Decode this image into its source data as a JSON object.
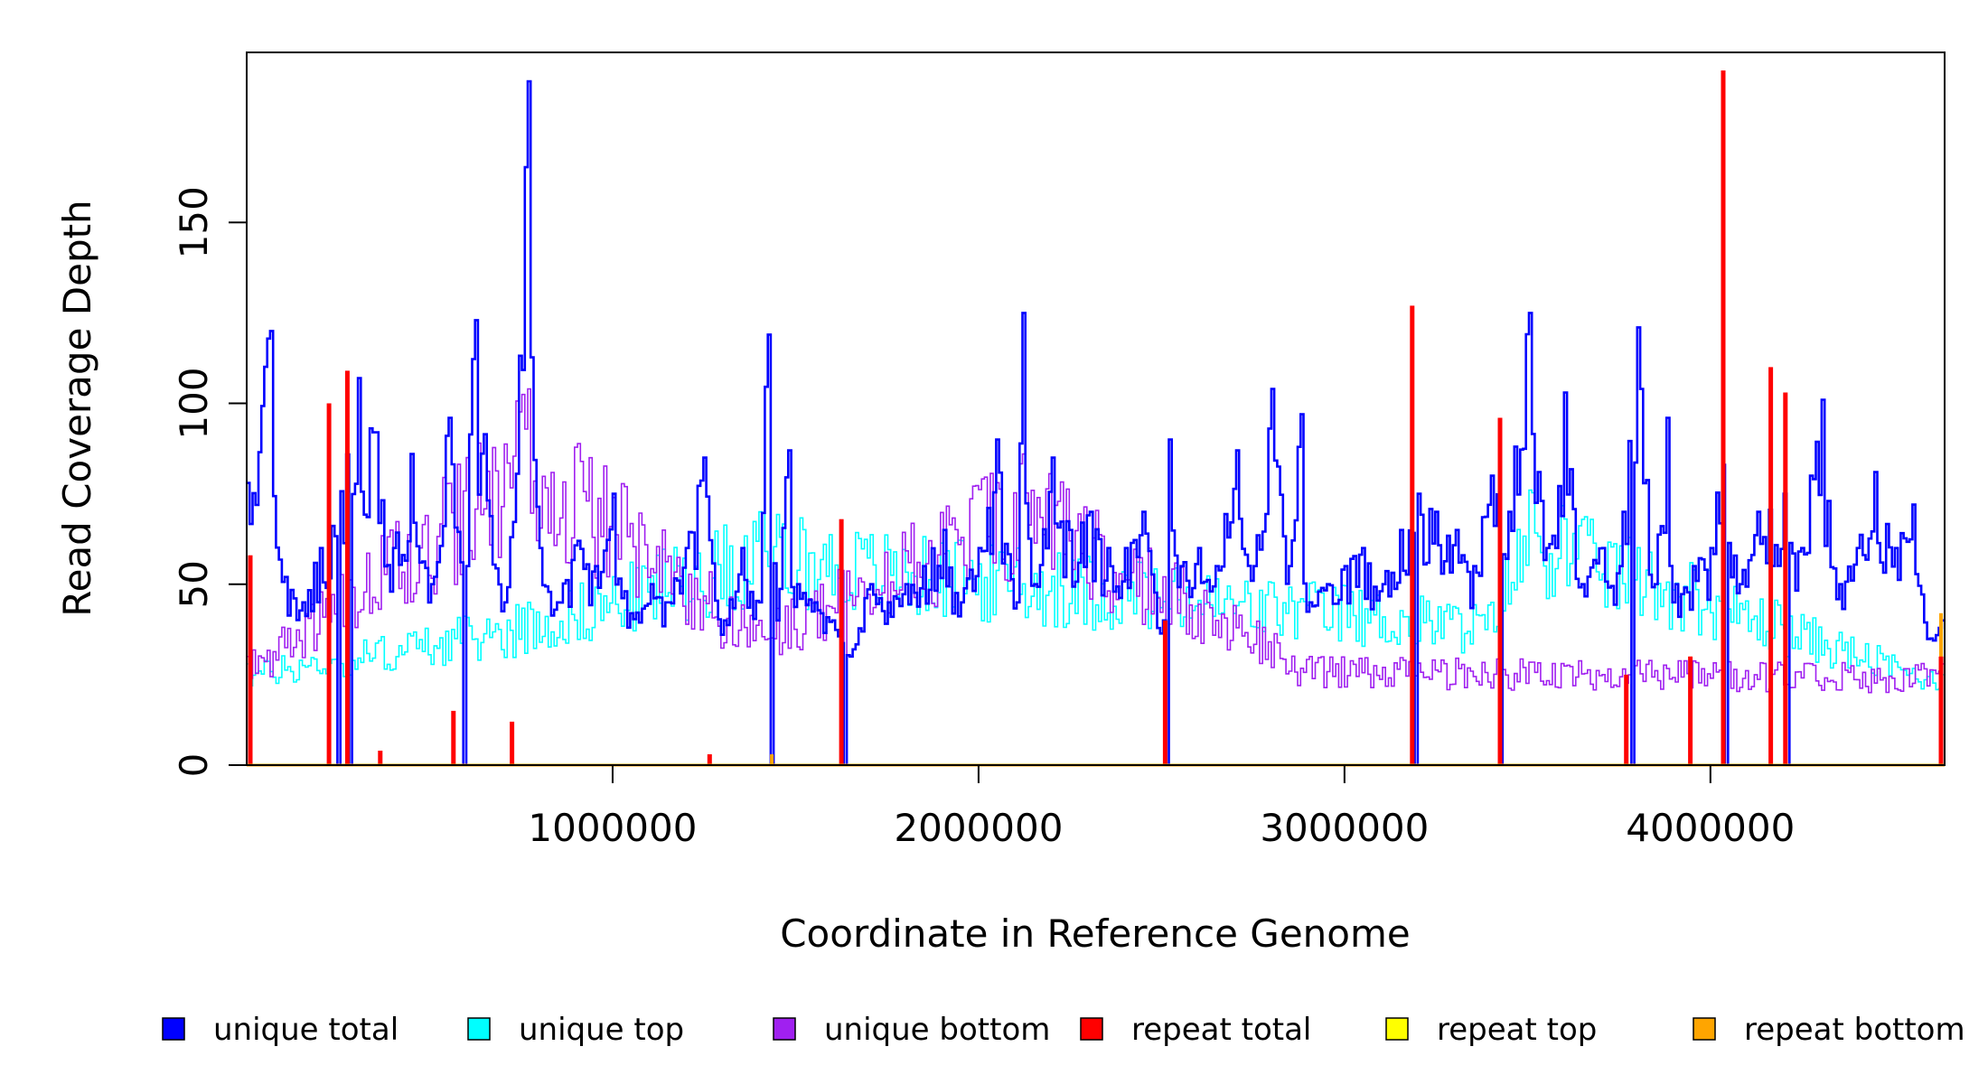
{
  "chart_data": {
    "type": "line",
    "title": "",
    "xlabel": "Coordinate in Reference Genome",
    "ylabel": "Read Coverage Depth",
    "xlim": [
      0,
      4640000
    ],
    "ylim": [
      0,
      197
    ],
    "x_ticks": [
      {
        "value": 1000000,
        "label": "1000000"
      },
      {
        "value": 2000000,
        "label": "2000000"
      },
      {
        "value": 3000000,
        "label": "3000000"
      },
      {
        "value": 4000000,
        "label": "4000000"
      }
    ],
    "y_ticks": [
      {
        "value": 0,
        "label": "0"
      },
      {
        "value": 50,
        "label": "50"
      },
      {
        "value": 100,
        "label": "100"
      },
      {
        "value": 150,
        "label": "150"
      }
    ],
    "grid": false,
    "legend_position": "bottom",
    "bin_size": 8000,
    "series": [
      {
        "name": "unique total",
        "color": "#0000ff",
        "profile": [
          [
            0,
            78
          ],
          [
            60000,
            120
          ],
          [
            100000,
            52
          ],
          [
            150000,
            45
          ],
          [
            200000,
            60
          ],
          [
            250000,
            75
          ],
          [
            300000,
            107
          ],
          [
            350000,
            92
          ],
          [
            400000,
            60
          ],
          [
            450000,
            86
          ],
          [
            500000,
            50
          ],
          [
            550000,
            96
          ],
          [
            600000,
            55
          ],
          [
            620000,
            123
          ],
          [
            700000,
            45
          ],
          [
            720000,
            63
          ],
          [
            770000,
            189
          ],
          [
            800000,
            60
          ],
          [
            850000,
            45
          ],
          [
            900000,
            62
          ],
          [
            950000,
            55
          ],
          [
            1000000,
            75
          ],
          [
            1050000,
            42
          ],
          [
            1100000,
            50
          ],
          [
            1150000,
            45
          ],
          [
            1200000,
            60
          ],
          [
            1250000,
            85
          ],
          [
            1300000,
            40
          ],
          [
            1350000,
            60
          ],
          [
            1400000,
            45
          ],
          [
            1420000,
            119
          ],
          [
            1450000,
            40
          ],
          [
            1480000,
            87
          ],
          [
            1500000,
            50
          ],
          [
            1550000,
            45
          ],
          [
            1600000,
            40
          ],
          [
            1650000,
            30
          ],
          [
            1700000,
            50
          ],
          [
            1750000,
            45
          ],
          [
            1800000,
            50
          ],
          [
            1850000,
            55
          ],
          [
            1900000,
            65
          ],
          [
            1950000,
            45
          ],
          [
            2000000,
            60
          ],
          [
            2050000,
            90
          ],
          [
            2100000,
            45
          ],
          [
            2120000,
            125
          ],
          [
            2150000,
            50
          ],
          [
            2200000,
            85
          ],
          [
            2250000,
            65
          ],
          [
            2300000,
            70
          ],
          [
            2350000,
            60
          ],
          [
            2400000,
            60
          ],
          [
            2450000,
            70
          ],
          [
            2500000,
            40
          ],
          [
            2520000,
            90
          ],
          [
            2550000,
            55
          ],
          [
            2600000,
            60
          ],
          [
            2650000,
            55
          ],
          [
            2700000,
            87
          ],
          [
            2750000,
            55
          ],
          [
            2800000,
            104
          ],
          [
            2850000,
            55
          ],
          [
            2880000,
            97
          ],
          [
            2900000,
            45
          ],
          [
            2950000,
            50
          ],
          [
            3000000,
            55
          ],
          [
            3050000,
            60
          ],
          [
            3100000,
            50
          ],
          [
            3150000,
            65
          ],
          [
            3200000,
            75
          ],
          [
            3250000,
            70
          ],
          [
            3300000,
            65
          ],
          [
            3350000,
            55
          ],
          [
            3400000,
            80
          ],
          [
            3450000,
            70
          ],
          [
            3500000,
            125
          ],
          [
            3550000,
            60
          ],
          [
            3600000,
            103
          ],
          [
            3650000,
            50
          ],
          [
            3700000,
            60
          ],
          [
            3750000,
            55
          ],
          [
            3800000,
            121
          ],
          [
            3850000,
            50
          ],
          [
            3880000,
            96
          ],
          [
            3900000,
            50
          ],
          [
            3950000,
            55
          ],
          [
            4000000,
            60
          ],
          [
            4030000,
            83
          ],
          [
            4080000,
            50
          ],
          [
            4130000,
            70
          ],
          [
            4200000,
            75
          ],
          [
            4250000,
            60
          ],
          [
            4300000,
            101
          ],
          [
            4350000,
            50
          ],
          [
            4400000,
            60
          ],
          [
            4450000,
            81
          ],
          [
            4500000,
            60
          ],
          [
            4550000,
            72
          ],
          [
            4600000,
            35
          ],
          [
            4640000,
            40
          ]
        ],
        "dips": [
          250000,
          280000,
          590000,
          1435000,
          1630000,
          2515000,
          3190000,
          3425000,
          3780000,
          4040000,
          4210000
        ]
      },
      {
        "name": "unique top",
        "color": "#00ffff",
        "profile": [
          [
            0,
            28
          ],
          [
            770000,
            45
          ],
          [
            1400000,
            70
          ],
          [
            2100000,
            60
          ],
          [
            3400000,
            45
          ],
          [
            3500000,
            76
          ],
          [
            4640000,
            25
          ]
        ],
        "dips": [
          250000,
          1435000,
          2515000,
          3780000,
          4040000
        ]
      },
      {
        "name": "unique bottom",
        "color": "#a020f0",
        "profile": [
          [
            0,
            30
          ],
          [
            600000,
            85
          ],
          [
            770000,
            104
          ],
          [
            1400000,
            40
          ],
          [
            2120000,
            86
          ],
          [
            2900000,
            30
          ],
          [
            4640000,
            28
          ]
        ],
        "dips": [
          250000,
          1630000,
          2515000,
          3780000,
          4040000
        ]
      },
      {
        "name": "repeat total",
        "color": "#ff0000",
        "spikes": [
          [
            10000,
            58
          ],
          [
            225000,
            100
          ],
          [
            275000,
            109
          ],
          [
            365000,
            4
          ],
          [
            565000,
            15
          ],
          [
            725000,
            12
          ],
          [
            1265000,
            3
          ],
          [
            1625000,
            68
          ],
          [
            2510000,
            40
          ],
          [
            3185000,
            127
          ],
          [
            3425000,
            96
          ],
          [
            3770000,
            25
          ],
          [
            3945000,
            30
          ],
          [
            4035000,
            192
          ],
          [
            4165000,
            110
          ],
          [
            4205000,
            103
          ],
          [
            4630000,
            30
          ]
        ]
      },
      {
        "name": "repeat top",
        "color": "#ffff00",
        "spikes": [
          [
            10000,
            10
          ],
          [
            275000,
            30
          ],
          [
            3185000,
            50
          ],
          [
            4035000,
            60
          ]
        ]
      },
      {
        "name": "repeat bottom",
        "color": "#ffa500",
        "spikes": [
          [
            10000,
            12
          ],
          [
            365000,
            3
          ],
          [
            725000,
            8
          ],
          [
            1265000,
            2
          ],
          [
            1435000,
            3
          ],
          [
            1625000,
            42
          ],
          [
            3185000,
            75
          ],
          [
            3425000,
            5
          ],
          [
            3770000,
            25
          ],
          [
            3945000,
            30
          ],
          [
            4035000,
            104
          ],
          [
            4630000,
            42
          ]
        ]
      }
    ]
  }
}
